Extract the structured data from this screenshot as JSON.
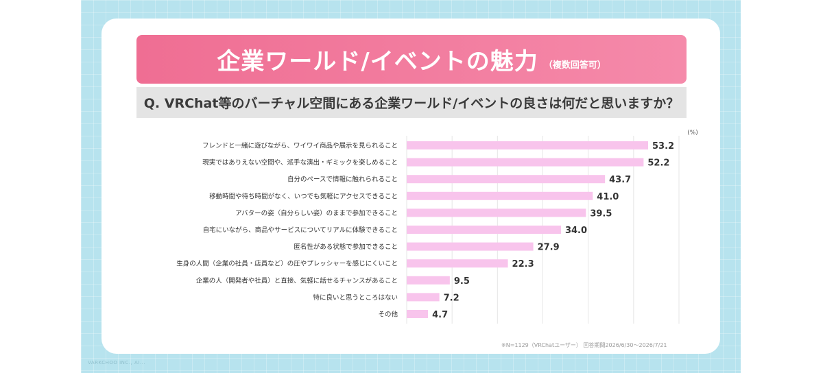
{
  "header": {
    "title": "企業ワールド/イベントの魅力",
    "title_note": "（複数回答可）",
    "question": "Q. VRChat等のバーチャル空間にある企業ワールド/イベントの良さは何だと思いますか？"
  },
  "footnote": "※N=1129（VRChatユーザー） 回答期間2026/6/30～2026/7/21",
  "watermark": "VARKCHOO INC., AI...",
  "colors": {
    "frame": "#b7e3ee",
    "title_band": "#ef6e93",
    "question_band": "#e4e4e4",
    "bar": "#f8c4ec",
    "text": "#333333"
  },
  "chart_data": {
    "type": "bar",
    "orientation": "horizontal",
    "unit": "(%)",
    "xlim": [
      0,
      60
    ],
    "grid": true,
    "categories": [
      "フレンドと一緒に遊びながら、ワイワイ商品や展示を見られること",
      "現実ではありえない空間や、派手な演出・ギミックを楽しめること",
      "自分のペースで情報に触れられること",
      "移動時間や待ち時間がなく、いつでも気軽にアクセスできること",
      "アバターの姿（自分らしい姿）のままで参加できること",
      "自宅にいながら、商品やサービスについてリアルに体験できること",
      "匿名性がある状態で参加できること",
      "生身の人間（企業の社員・店員など）の圧やプレッシャーを感じにくいこと",
      "企業の人（開発者や社員）と直接、気軽に話せるチャンスがあること",
      "特に良いと思うところはない",
      "その他"
    ],
    "values": [
      53.2,
      52.2,
      43.7,
      41.0,
      39.5,
      34.0,
      27.9,
      22.3,
      9.5,
      7.2,
      4.7
    ],
    "value_labels": [
      "53.2",
      "52.2",
      "43.7",
      "41.0",
      "39.5",
      "34.0",
      "27.9",
      "22.3",
      "9.5",
      "7.2",
      "4.7"
    ]
  }
}
